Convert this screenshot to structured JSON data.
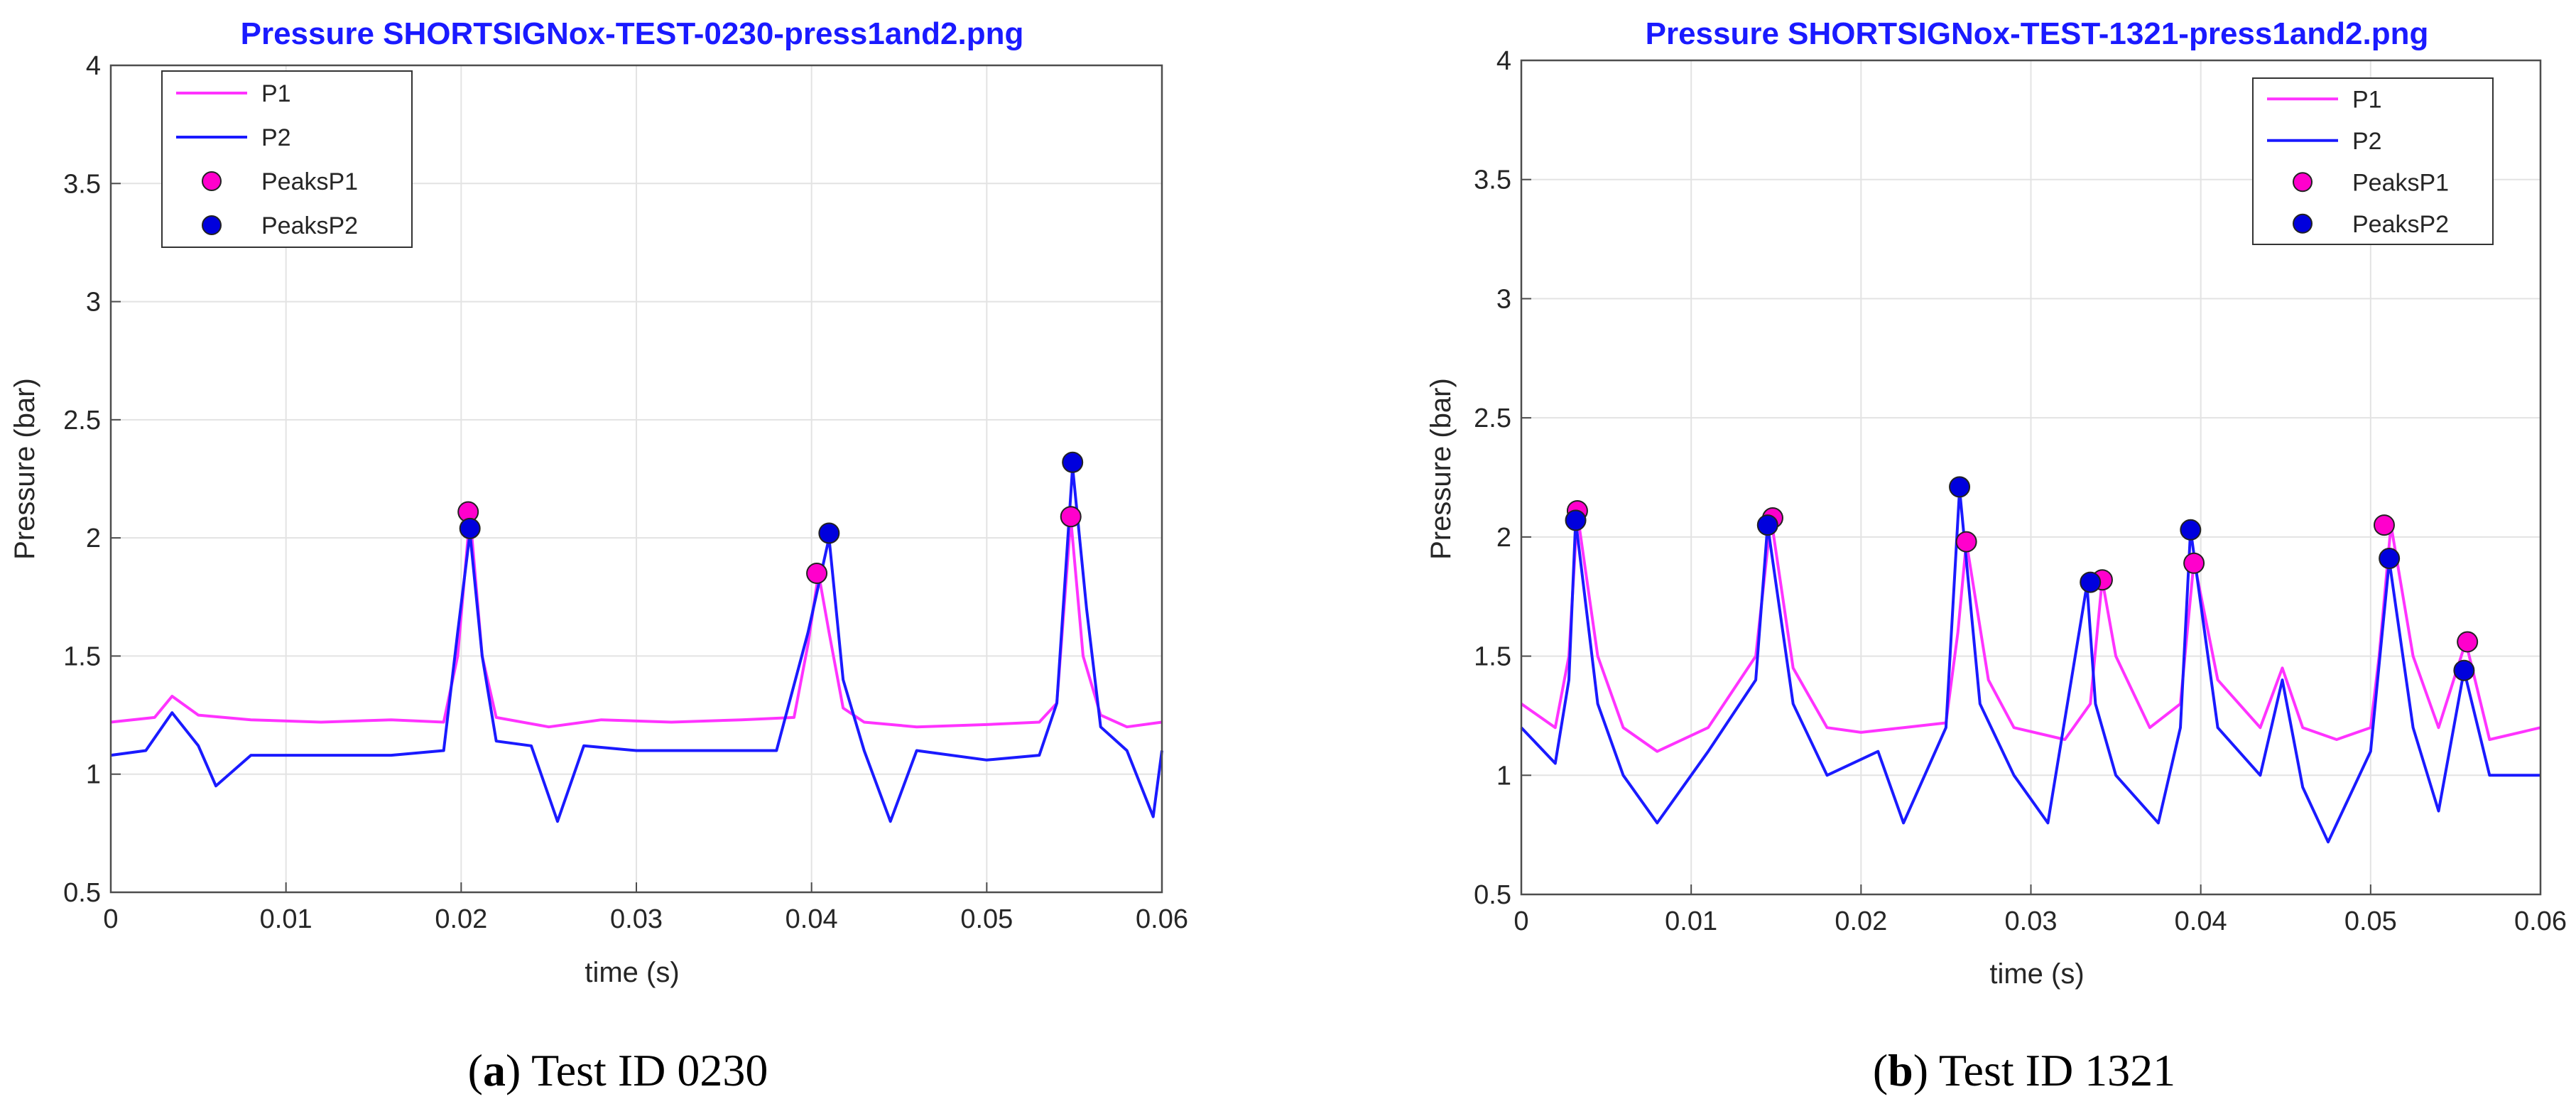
{
  "chart_data": [
    {
      "type": "line",
      "title": "Pressure SHORTSIGNox-TEST-0230-press1and2.png",
      "xlabel": "time (s)",
      "ylabel": "Pressure (bar)",
      "xlim": [
        0,
        0.06
      ],
      "ylim": [
        0.5,
        4
      ],
      "xticks": [
        0,
        0.01,
        0.02,
        0.03,
        0.04,
        0.05,
        0.06
      ],
      "xtick_labels": [
        "0",
        "0.01",
        "0.02",
        "0.03",
        "0.04",
        "0.05",
        "0.06"
      ],
      "yticks": [
        0.5,
        1,
        1.5,
        2,
        2.5,
        3,
        3.5,
        4
      ],
      "ytick_labels": [
        "0.5",
        "1",
        "1.5",
        "2",
        "2.5",
        "3",
        "3.5",
        "4"
      ],
      "grid": true,
      "legend_position": "top-left",
      "legend": [
        "P1",
        "P2",
        "PeaksP1",
        "PeaksP2"
      ],
      "caption_letter": "a",
      "caption_text": ") Test ID 0230",
      "series": [
        {
          "name": "P1",
          "color": "#ff33ff",
          "x": [
            0,
            0.0025,
            0.0035,
            0.005,
            0.008,
            0.012,
            0.016,
            0.019,
            0.0198,
            0.0205,
            0.0212,
            0.022,
            0.025,
            0.028,
            0.032,
            0.036,
            0.039,
            0.0398,
            0.0404,
            0.041,
            0.0418,
            0.043,
            0.046,
            0.05,
            0.053,
            0.054,
            0.0548,
            0.0555,
            0.0565,
            0.058,
            0.06
          ],
          "y": [
            1.22,
            1.24,
            1.33,
            1.25,
            1.23,
            1.22,
            1.23,
            1.22,
            1.5,
            2.1,
            1.5,
            1.24,
            1.2,
            1.23,
            1.22,
            1.23,
            1.24,
            1.55,
            1.85,
            1.6,
            1.28,
            1.22,
            1.2,
            1.21,
            1.22,
            1.3,
            2.08,
            1.5,
            1.25,
            1.2,
            1.22
          ]
        },
        {
          "name": "P2",
          "color": "#1a1aff",
          "x": [
            0,
            0.002,
            0.0035,
            0.005,
            0.006,
            0.008,
            0.012,
            0.016,
            0.019,
            0.0198,
            0.0205,
            0.0212,
            0.022,
            0.024,
            0.0255,
            0.027,
            0.03,
            0.034,
            0.038,
            0.0398,
            0.041,
            0.0418,
            0.043,
            0.0445,
            0.046,
            0.05,
            0.053,
            0.054,
            0.0549,
            0.0557,
            0.0565,
            0.058,
            0.0595,
            0.06
          ],
          "y": [
            1.08,
            1.1,
            1.26,
            1.12,
            0.95,
            1.08,
            1.08,
            1.08,
            1.1,
            1.6,
            2.02,
            1.5,
            1.14,
            1.12,
            0.8,
            1.12,
            1.1,
            1.1,
            1.1,
            1.6,
            2.0,
            1.4,
            1.1,
            0.8,
            1.1,
            1.06,
            1.08,
            1.3,
            2.3,
            1.7,
            1.2,
            1.1,
            0.82,
            1.1
          ]
        },
        {
          "name": "PeaksP1",
          "color": "#ff00cc",
          "x": [
            0.0204,
            0.0403,
            0.0548
          ],
          "y": [
            2.11,
            1.85,
            2.09
          ]
        },
        {
          "name": "PeaksP2",
          "color": "#0000dd",
          "x": [
            0.0205,
            0.041,
            0.0549
          ],
          "y": [
            2.04,
            2.02,
            2.32
          ]
        }
      ]
    },
    {
      "type": "line",
      "title": "Pressure SHORTSIGNox-TEST-1321-press1and2.png",
      "xlabel": "time (s)",
      "ylabel": "Pressure (bar)",
      "xlim": [
        0,
        0.06
      ],
      "ylim": [
        0.5,
        4
      ],
      "xticks": [
        0,
        0.01,
        0.02,
        0.03,
        0.04,
        0.05,
        0.06
      ],
      "xtick_labels": [
        "0",
        "0.01",
        "0.02",
        "0.03",
        "0.04",
        "0.05",
        "0.06"
      ],
      "yticks": [
        0.5,
        1,
        1.5,
        2,
        2.5,
        3,
        3.5,
        4
      ],
      "ytick_labels": [
        "0.5",
        "1",
        "1.5",
        "2",
        "2.5",
        "3",
        "3.5",
        "4"
      ],
      "grid": true,
      "legend_position": "top-right",
      "legend": [
        "P1",
        "P2",
        "PeaksP1",
        "PeaksP2"
      ],
      "caption_letter": "b",
      "caption_text": ") Test ID 1321",
      "series": [
        {
          "name": "P1",
          "color": "#ff33ff",
          "x": [
            0,
            0.002,
            0.0028,
            0.0033,
            0.0045,
            0.006,
            0.008,
            0.011,
            0.0138,
            0.0147,
            0.016,
            0.018,
            0.02,
            0.0225,
            0.025,
            0.0257,
            0.0262,
            0.0275,
            0.029,
            0.032,
            0.0335,
            0.0342,
            0.035,
            0.037,
            0.0388,
            0.0396,
            0.041,
            0.0435,
            0.0448,
            0.046,
            0.048,
            0.05,
            0.0505,
            0.0512,
            0.0525,
            0.054,
            0.0556,
            0.057,
            0.06
          ],
          "y": [
            1.3,
            1.2,
            1.5,
            2.1,
            1.5,
            1.2,
            1.1,
            1.2,
            1.5,
            2.08,
            1.45,
            1.2,
            1.18,
            1.2,
            1.22,
            1.6,
            1.98,
            1.4,
            1.2,
            1.15,
            1.3,
            1.82,
            1.5,
            1.2,
            1.3,
            1.9,
            1.4,
            1.2,
            1.45,
            1.2,
            1.15,
            1.2,
            1.5,
            2.05,
            1.5,
            1.2,
            1.56,
            1.15,
            1.2
          ]
        },
        {
          "name": "P2",
          "color": "#1a1aff",
          "x": [
            0,
            0.002,
            0.0028,
            0.0032,
            0.0045,
            0.006,
            0.008,
            0.011,
            0.0138,
            0.0145,
            0.016,
            0.018,
            0.021,
            0.0225,
            0.025,
            0.0258,
            0.027,
            0.029,
            0.031,
            0.0333,
            0.0338,
            0.035,
            0.0375,
            0.0388,
            0.0394,
            0.041,
            0.0435,
            0.0448,
            0.046,
            0.0475,
            0.05,
            0.0511,
            0.0525,
            0.054,
            0.0555,
            0.057,
            0.06
          ],
          "y": [
            1.2,
            1.05,
            1.4,
            2.07,
            1.3,
            1.0,
            0.8,
            1.1,
            1.4,
            2.05,
            1.3,
            1.0,
            1.1,
            0.8,
            1.2,
            2.2,
            1.3,
            1.0,
            0.8,
            1.8,
            1.3,
            1.0,
            0.8,
            1.2,
            2.03,
            1.2,
            1.0,
            1.4,
            0.95,
            0.72,
            1.1,
            1.9,
            1.2,
            0.85,
            1.44,
            1.0,
            1.0
          ]
        },
        {
          "name": "PeaksP1",
          "color": "#ff00cc",
          "x": [
            0.0033,
            0.0148,
            0.0262,
            0.0342,
            0.0396,
            0.0508,
            0.0557
          ],
          "y": [
            2.11,
            2.08,
            1.98,
            1.82,
            1.89,
            2.05,
            1.56
          ]
        },
        {
          "name": "PeaksP2",
          "color": "#0000dd",
          "x": [
            0.0032,
            0.0145,
            0.0258,
            0.0335,
            0.0394,
            0.0511,
            0.0555
          ],
          "y": [
            2.07,
            2.05,
            2.21,
            1.81,
            2.03,
            1.91,
            1.44
          ]
        }
      ]
    }
  ]
}
